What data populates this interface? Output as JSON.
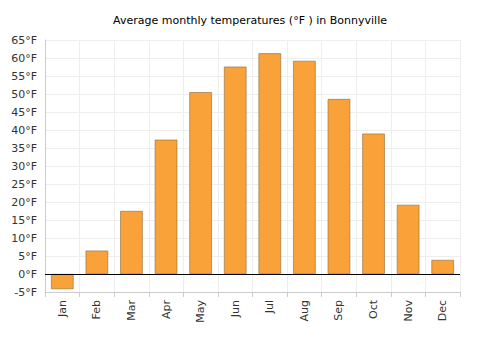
{
  "chart_data": {
    "type": "bar",
    "title": "Average monthly temperatures (°F ) in Bonnyville",
    "categories": [
      "Jan",
      "Feb",
      "Mar",
      "Apr",
      "May",
      "Jun",
      "Jul",
      "Aug",
      "Sep",
      "Oct",
      "Nov",
      "Dec"
    ],
    "values": [
      -4.2,
      6.5,
      17.5,
      37.3,
      50.5,
      57.6,
      61.3,
      59.2,
      48.6,
      39.0,
      19.2,
      3.9
    ],
    "color": "#f9a23a",
    "ylim": [
      -5,
      65
    ],
    "yticks": [
      {
        "value": -5,
        "label": "-5°F"
      },
      {
        "value": 0,
        "label": "0°F"
      },
      {
        "value": 5,
        "label": "5°F"
      },
      {
        "value": 10,
        "label": "10°F"
      },
      {
        "value": 15,
        "label": "15°F"
      },
      {
        "value": 20,
        "label": "20°F"
      },
      {
        "value": 25,
        "label": "25°F"
      },
      {
        "value": 30,
        "label": "30°F"
      },
      {
        "value": 35,
        "label": "35°F"
      },
      {
        "value": 40,
        "label": "40°F"
      },
      {
        "value": 45,
        "label": "45°F"
      },
      {
        "value": 50,
        "label": "50°F"
      },
      {
        "value": 55,
        "label": "55°F"
      },
      {
        "value": 60,
        "label": "60°F"
      },
      {
        "value": 65,
        "label": "65°F"
      }
    ],
    "grid": true
  }
}
